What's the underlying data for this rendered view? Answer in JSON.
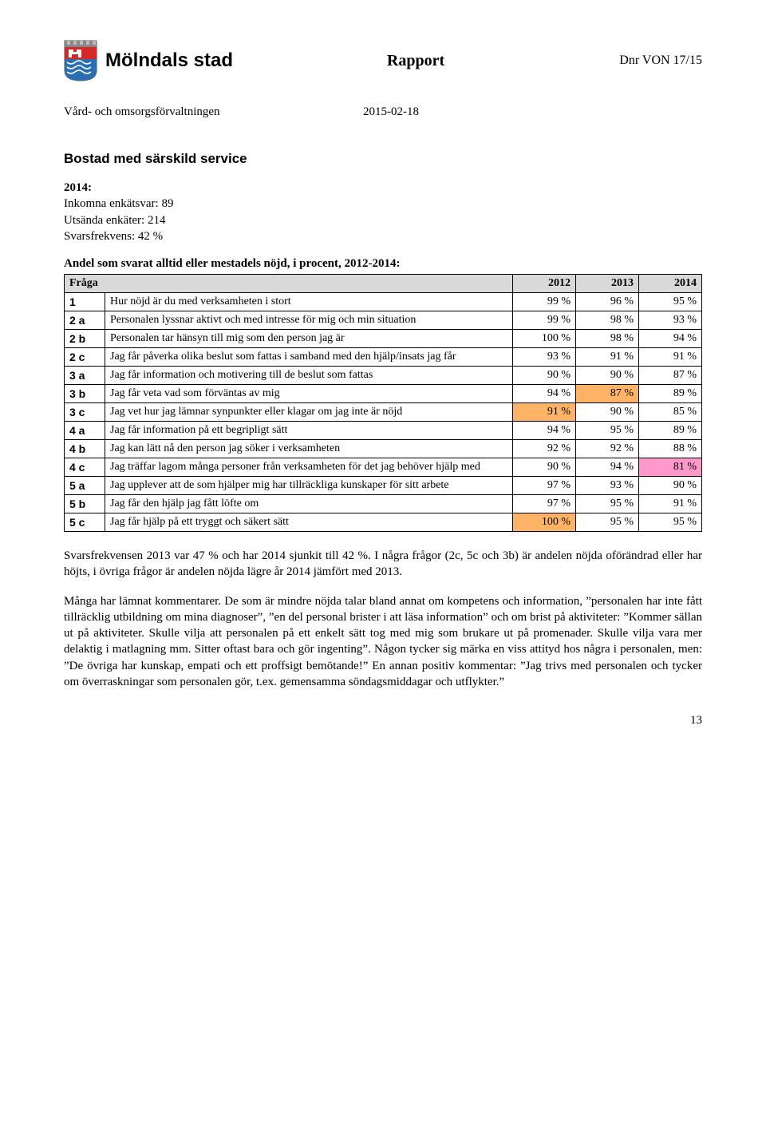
{
  "header": {
    "brand": "Mölndals stad",
    "title": "Rapport",
    "dnr": "Dnr VON 17/15",
    "department": "Vård- och omsorgsförvaltningen",
    "date": "2015-02-18"
  },
  "section": {
    "title": "Bostad med särskild service",
    "meta_year": "2014:",
    "meta1": "Inkomna enkätsvar: 89",
    "meta2": "Utsända enkäter: 214",
    "meta3": "Svarsfrekvens: 42 %",
    "table_intro": "Andel som svarat alltid eller mestadels nöjd, i procent, 2012-2014:"
  },
  "table": {
    "type": "table",
    "header_bg": "#d9d9d9",
    "colors": {
      "orange": "#ffb366",
      "pink": "#ff99cc"
    },
    "columns": [
      "Fråga",
      "",
      "2012",
      "2013",
      "2014"
    ],
    "rows": [
      {
        "id": "1",
        "q": "Hur nöjd är du med verksamheten i stort",
        "v": [
          "99 %",
          "96 %",
          "95 %"
        ],
        "hl": [
          null,
          null,
          null
        ]
      },
      {
        "id": "2 a",
        "q": "Personalen lyssnar aktivt och med intresse för mig och min situation",
        "v": [
          "99 %",
          "98 %",
          "93 %"
        ],
        "hl": [
          null,
          null,
          null
        ]
      },
      {
        "id": "2 b",
        "q": "Personalen tar hänsyn till mig som den person jag är",
        "v": [
          "100 %",
          "98 %",
          "94 %"
        ],
        "hl": [
          null,
          null,
          null
        ]
      },
      {
        "id": "2 c",
        "q": "Jag får påverka olika beslut som fattas i samband med den hjälp/insats jag får",
        "v": [
          "93 %",
          "91 %",
          "91 %"
        ],
        "hl": [
          null,
          null,
          null
        ]
      },
      {
        "id": "3 a",
        "q": "Jag får information och motivering till de beslut som fattas",
        "v": [
          "90 %",
          "90 %",
          "87 %"
        ],
        "hl": [
          null,
          null,
          null
        ]
      },
      {
        "id": "3 b",
        "q": "Jag får veta vad som förväntas av mig",
        "v": [
          "94 %",
          "87 %",
          "89 %"
        ],
        "hl": [
          null,
          "orange",
          null
        ]
      },
      {
        "id": "3 c",
        "q": "Jag vet hur jag lämnar synpunkter eller klagar om jag inte är nöjd",
        "v": [
          "91 %",
          "90 %",
          "85 %"
        ],
        "hl": [
          "orange",
          null,
          null
        ]
      },
      {
        "id": "4 a",
        "q": "Jag får information på ett begripligt sätt",
        "v": [
          "94 %",
          "95 %",
          "89 %"
        ],
        "hl": [
          null,
          null,
          null
        ]
      },
      {
        "id": "4 b",
        "q": "Jag kan lätt nå den person jag söker i verksamheten",
        "v": [
          "92 %",
          "92 %",
          "88 %"
        ],
        "hl": [
          null,
          null,
          null
        ]
      },
      {
        "id": "4 c",
        "q": "Jag träffar lagom många personer från verksamheten för det jag behöver hjälp med",
        "v": [
          "90 %",
          "94 %",
          "81 %"
        ],
        "hl": [
          null,
          null,
          "pink"
        ]
      },
      {
        "id": "5 a",
        "q": "Jag upplever att de som hjälper mig har tillräckliga kunskaper för sitt arbete",
        "v": [
          "97 %",
          "93 %",
          "90 %"
        ],
        "hl": [
          null,
          null,
          null
        ]
      },
      {
        "id": "5 b",
        "q": "Jag får den hjälp jag fått löfte om",
        "v": [
          "97 %",
          "95 %",
          "91 %"
        ],
        "hl": [
          null,
          null,
          null
        ]
      },
      {
        "id": "5 c",
        "q": "Jag får hjälp på ett tryggt och säkert sätt",
        "v": [
          "100 %",
          "95 %",
          "95 %"
        ],
        "hl": [
          "orange",
          null,
          null
        ]
      }
    ]
  },
  "paragraphs": {
    "p1": "Svarsfrekvensen 2013 var 47 % och har 2014 sjunkit till 42 %. I några frågor (2c, 5c och 3b) är andelen nöjda oförändrad eller har höjts, i övriga frågor är andelen nöjda lägre år 2014 jämfört med 2013.",
    "p2": "Många har lämnat kommentarer. De som är mindre nöjda talar bland annat om kompetens och information, ”personalen har inte fått tillräcklig utbildning om mina diagnoser”, ”en del personal brister i att läsa information” och om brist på aktiviteter: ”Kommer sällan ut på aktiviteter. Skulle vilja att personalen på ett enkelt sätt tog med mig som brukare ut på promenader. Skulle vilja vara mer delaktig i matlagning mm. Sitter oftast bara och gör ingenting”. Någon tycker sig märka en viss attityd hos några i personalen, men: ”De övriga har kunskap, empati och ett proffsigt bemötande!” En annan positiv kommentar: ”Jag trivs med personalen och tycker om överraskningar som personalen gör, t.ex. gemensamma söndagsmiddagar och utflykter.”"
  },
  "page_number": "13"
}
